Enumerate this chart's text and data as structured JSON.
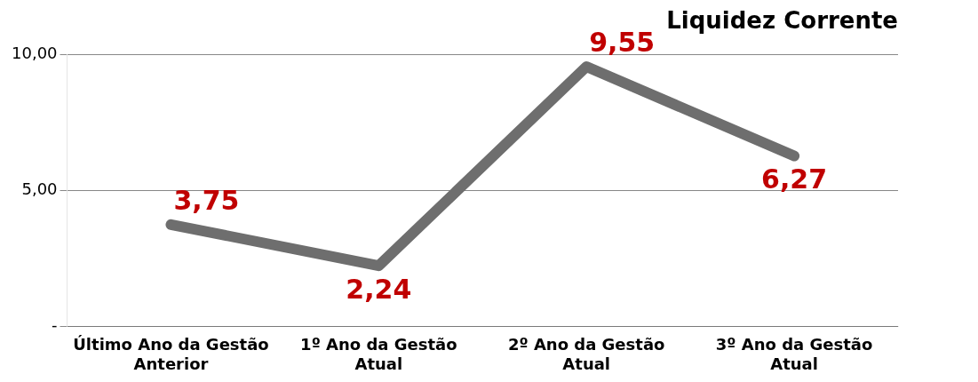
{
  "chart_data": {
    "type": "line",
    "title": "Liquidez Corrente",
    "categories": [
      "Último Ano da Gestão Anterior",
      "1º Ano da Gestão Atual",
      "2º Ano da Gestão Atual",
      "3º Ano da Gestão Atual"
    ],
    "series": [
      {
        "color": "#6e6e6e",
        "values": [
          3.75,
          2.24,
          9.55,
          6.27
        ],
        "value_labels": [
          "3,75",
          "2,24",
          "9,55",
          "6,27"
        ]
      }
    ],
    "ylim": [
      0,
      10
    ],
    "yticks": [
      {
        "value": 0,
        "label": "-"
      },
      {
        "value": 5,
        "label": "5,00"
      },
      {
        "value": 10,
        "label": "10,00"
      }
    ],
    "grid": "y",
    "legend": false,
    "marker": "none",
    "line_style": "solid"
  }
}
